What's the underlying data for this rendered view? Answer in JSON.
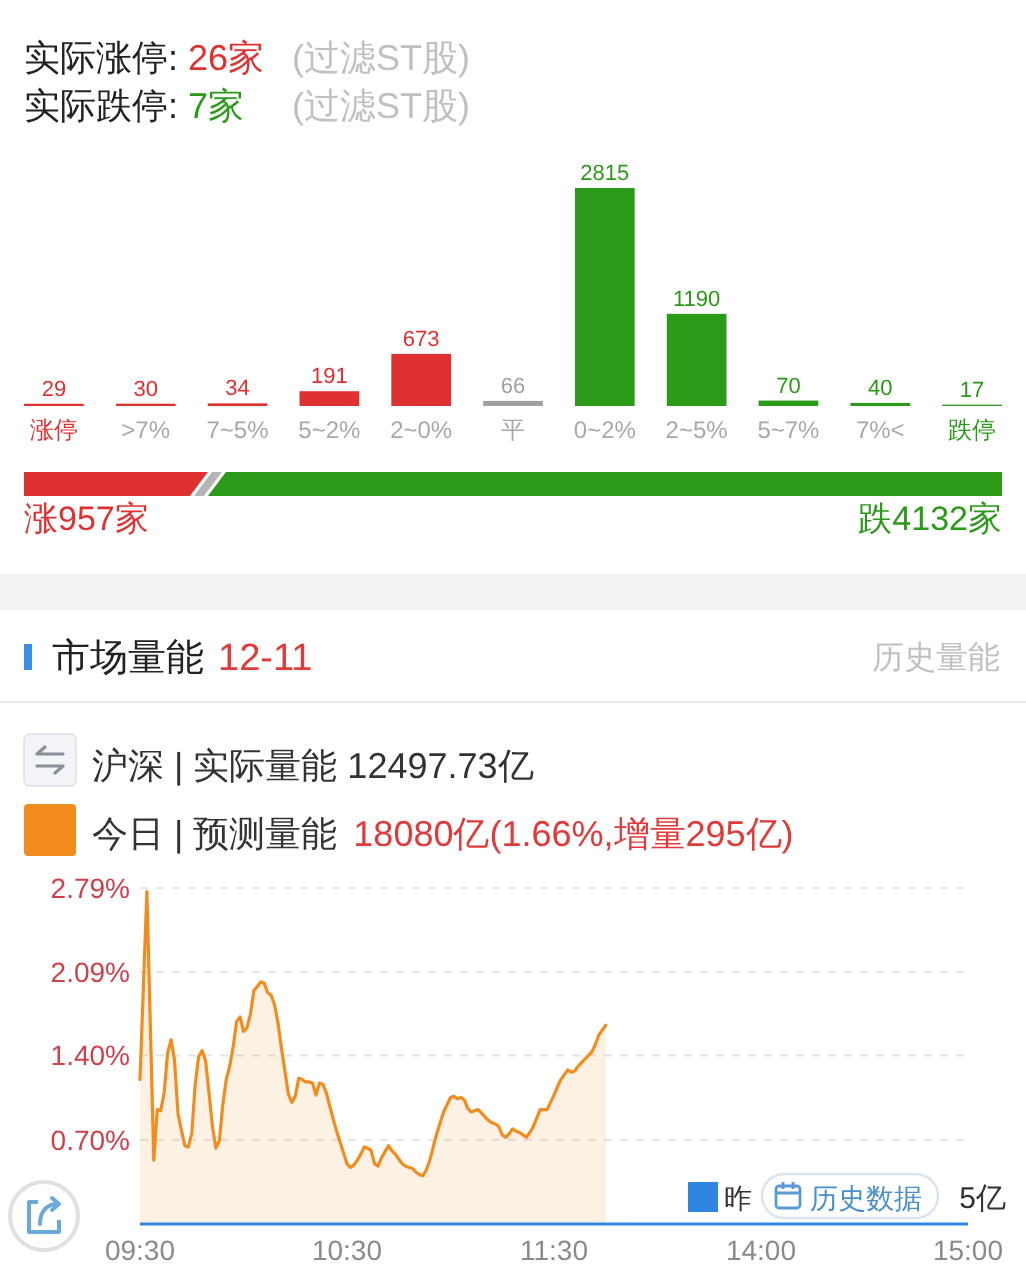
{
  "chart_data": [
    {
      "type": "bar",
      "title": "实际涨停: 26家 (过滤ST股)",
      "subtitle": "实际跌停: 7家 (过滤ST股)",
      "categories": [
        "涨停",
        ">7%",
        "7~5%",
        "5~2%",
        "2~0%",
        "平",
        "0~2%",
        "2~5%",
        "5~7%",
        "7%<",
        "跌停"
      ],
      "values": [
        29,
        30,
        34,
        191,
        673,
        66,
        2815,
        1190,
        70,
        40,
        17
      ],
      "colors": [
        "#e03131",
        "#e03131",
        "#e03131",
        "#e03131",
        "#e03131",
        "#a0a0a0",
        "#2a9a18",
        "#2a9a18",
        "#2a9a18",
        "#2a9a18",
        "#2a9a18"
      ],
      "data_labels": true
    },
    {
      "type": "bar",
      "orientation": "horizontal",
      "stacked": true,
      "categories": [
        null
      ],
      "series": [
        {
          "color": "#e03131",
          "values": [
            957
          ],
          "value_labels": [
            "涨957家"
          ]
        },
        {
          "color": "#2a9a18",
          "values": [
            4132
          ],
          "value_labels": [
            "跌4132家"
          ]
        }
      ]
    },
    {
      "type": "area",
      "title": "市场量能",
      "subtitle": "12-11",
      "annotations": [
        "历史量能",
        "沪深 | 实际量能 12497.73亿",
        "18080亿(1.66%,增量295亿)",
        "昨",
        "历史数据",
        "5亿"
      ],
      "legend": "top left",
      "grid": "y",
      "ylim": [
        0,
        2.79
      ],
      "yticks": [
        {
          "value": 0.7,
          "label": "0.70%"
        },
        {
          "value": 1.4,
          "label": "1.40%"
        },
        {
          "value": 2.09,
          "label": "2.09%"
        },
        {
          "value": 2.79,
          "label": "2.79%"
        }
      ],
      "categories": [
        "09:30",
        null,
        null,
        null,
        null,
        null,
        null,
        null,
        null,
        null,
        null,
        null,
        null,
        null,
        null,
        null,
        null,
        null,
        null,
        null,
        null,
        null,
        null,
        null,
        null,
        null,
        null,
        null,
        null,
        null,
        null,
        null,
        null,
        null,
        null,
        null,
        null,
        null,
        null,
        null,
        null,
        null,
        null,
        null,
        null,
        null,
        null,
        null,
        null,
        null,
        null,
        null,
        null,
        null,
        null,
        null,
        null,
        null,
        null,
        null,
        "10:30",
        null,
        null,
        null,
        null,
        null,
        null,
        null,
        null,
        null,
        null,
        null,
        null,
        null,
        null,
        null,
        null,
        null,
        null,
        null,
        null,
        null,
        null,
        null,
        null,
        null,
        null,
        null,
        null,
        null,
        null,
        null,
        null,
        null,
        null,
        null,
        null,
        null,
        null,
        null,
        null,
        null,
        null,
        null,
        null,
        null,
        null,
        null,
        null,
        null,
        null,
        null,
        null,
        null,
        null,
        null,
        null,
        null,
        null,
        null,
        "11:30",
        null,
        null,
        null,
        null,
        null,
        null,
        null,
        null,
        null,
        null,
        null,
        null,
        null,
        null,
        null,
        null,
        null,
        null,
        null,
        null,
        null,
        null,
        null,
        null,
        null,
        null,
        null,
        null,
        null,
        null,
        null,
        null,
        null,
        null,
        null,
        null,
        null,
        null,
        null,
        null,
        null,
        null,
        null,
        null,
        null,
        null,
        null,
        null,
        null,
        null,
        null,
        null,
        null,
        null,
        null,
        null,
        null,
        null,
        null,
        "14:00",
        null,
        null,
        null,
        null,
        null,
        null,
        null,
        null,
        null,
        null,
        null,
        null,
        null,
        null,
        null,
        null,
        null,
        null,
        null,
        null,
        null,
        null,
        null,
        null,
        null,
        null,
        null,
        null,
        null,
        null,
        null,
        null,
        null,
        null,
        null,
        null,
        null,
        null,
        null,
        null,
        null,
        null,
        null,
        null,
        null,
        null,
        null,
        null,
        null,
        null,
        null,
        null,
        null,
        null,
        null,
        null,
        null,
        null,
        null,
        "15:00"
      ],
      "series": [
        {
          "name": "今日 | 预测量能",
          "color": "#f28c1e",
          "values": [
            1.2,
            1.98,
            2.76,
            1.64,
            0.53,
            0.95,
            0.94,
            1.09,
            1.42,
            1.53,
            1.36,
            0.92,
            0.78,
            0.65,
            0.64,
            0.75,
            1.16,
            1.39,
            1.44,
            1.36,
            1.09,
            0.81,
            0.63,
            0.69,
            0.99,
            1.2,
            1.31,
            1.47,
            1.68,
            1.72,
            1.6,
            1.63,
            1.74,
            1.94,
            1.97,
            2.01,
            2.0,
            1.92,
            1.9,
            1.82,
            1.67,
            1.46,
            1.27,
            1.08,
            1.01,
            1.06,
            1.21,
            1.2,
            1.18,
            1.18,
            1.17,
            1.07,
            1.17,
            1.16,
            1.09,
            0.98,
            0.87,
            0.77,
            0.68,
            0.59,
            0.5,
            0.47,
            0.49,
            0.53,
            0.58,
            0.64,
            0.63,
            0.61,
            0.5,
            0.48,
            0.55,
            0.6,
            0.65,
            0.61,
            0.58,
            0.54,
            0.5,
            0.48,
            0.47,
            0.46,
            0.43,
            0.41,
            0.4,
            0.45,
            0.53,
            0.64,
            0.75,
            0.84,
            0.93,
            0.99,
            1.05,
            1.06,
            1.04,
            1.05,
            1.03,
            0.96,
            0.93,
            0.94,
            0.95,
            0.92,
            0.89,
            0.86,
            0.84,
            0.83,
            0.81,
            0.74,
            0.72,
            0.75,
            0.79,
            0.77,
            0.76,
            0.74,
            0.72,
            0.76,
            0.81,
            0.88,
            0.95,
            0.95,
            0.95,
            1.01,
            1.07,
            1.14,
            1.2,
            1.24,
            1.28,
            1.26,
            1.27,
            1.31,
            1.34,
            1.37,
            1.4,
            1.43,
            1.49,
            1.57,
            1.61,
            1.65,
            null,
            null,
            null,
            null,
            null,
            null,
            null,
            null,
            null,
            null,
            null,
            null,
            null,
            null,
            null,
            null,
            null,
            null,
            null,
            null,
            null,
            null,
            null,
            null,
            null,
            null,
            null,
            null,
            null,
            null,
            null,
            null,
            null,
            null,
            null,
            null,
            null,
            null,
            null,
            null,
            null,
            null,
            null,
            null,
            null,
            null,
            null,
            null,
            null,
            null,
            null,
            null,
            null,
            null,
            null,
            null,
            null,
            null,
            null,
            null,
            null,
            null,
            null,
            null,
            null,
            null,
            null,
            null,
            null,
            null,
            null,
            null,
            null,
            null,
            null,
            null,
            null,
            null,
            null,
            null,
            null,
            null,
            null,
            null,
            null,
            null,
            null,
            null,
            null,
            null,
            null,
            null,
            null,
            null,
            null,
            null,
            null,
            null,
            null,
            null,
            null,
            null,
            null,
            null,
            null
          ]
        }
      ]
    }
  ]
}
